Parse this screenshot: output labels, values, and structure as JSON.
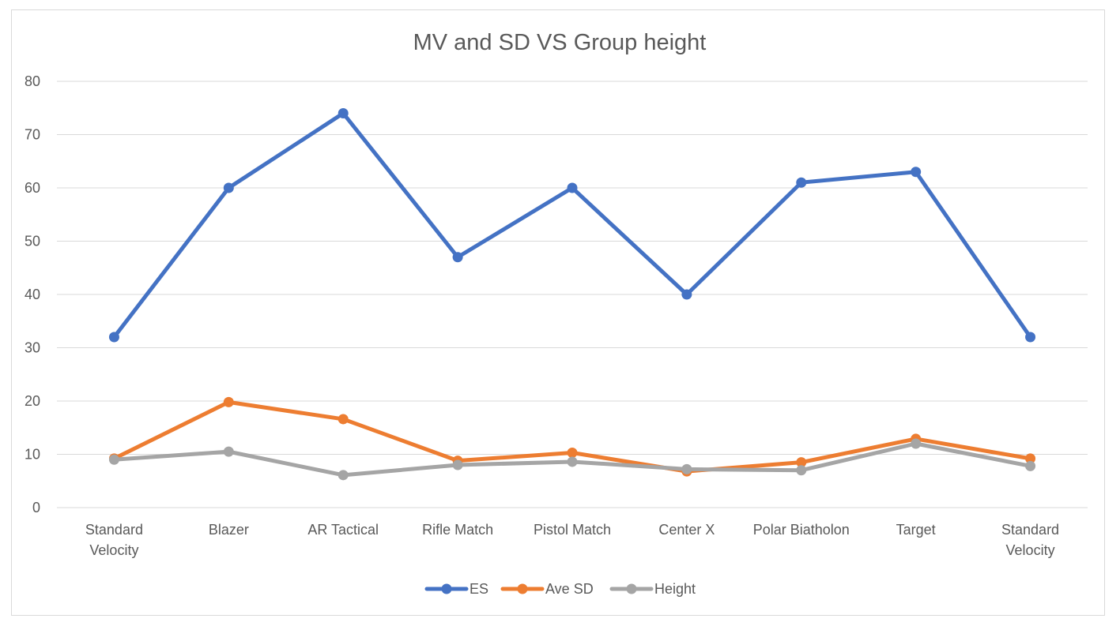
{
  "chart_data": {
    "type": "line",
    "title": "MV and SD VS Group height",
    "xlabel": "",
    "ylabel": "",
    "categories": [
      [
        "Standard",
        "Velocity"
      ],
      [
        "Blazer"
      ],
      [
        "AR Tactical"
      ],
      [
        "Rifle Match"
      ],
      [
        "Pistol Match"
      ],
      [
        "Center X"
      ],
      [
        "Polar Biatholon"
      ],
      [
        "Target"
      ],
      [
        "Standard",
        "Velocity"
      ]
    ],
    "ylim": [
      0,
      80
    ],
    "yticks": [
      "0",
      "10",
      "20",
      "30",
      "40",
      "50",
      "60",
      "70",
      "80"
    ],
    "grid": true,
    "legend_position": "bottom",
    "series": [
      {
        "name": "ES",
        "color": "#4472c4",
        "values": [
          32,
          60,
          74,
          47,
          60,
          40,
          61,
          63,
          32
        ]
      },
      {
        "name": "Ave SD",
        "color": "#ed7d31",
        "values": [
          9.2,
          19.8,
          16.6,
          8.8,
          10.3,
          6.8,
          8.5,
          12.9,
          9.2
        ]
      },
      {
        "name": "Height",
        "color": "#a5a5a5",
        "values": [
          9.0,
          10.5,
          6.1,
          8.0,
          8.6,
          7.2,
          7.0,
          12.0,
          7.8
        ]
      }
    ]
  }
}
